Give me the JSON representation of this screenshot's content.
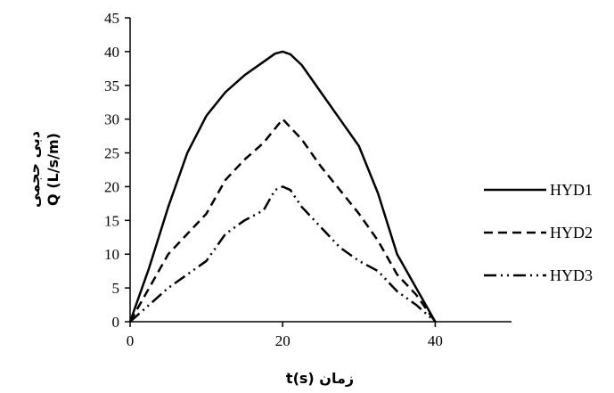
{
  "chart_data": {
    "type": "line",
    "xlabel": "t(s) زمان",
    "ylabel_lines": [
      "دبی حجمی",
      "Q (L/s/m)"
    ],
    "xlim": [
      0,
      50
    ],
    "ylim": [
      0,
      45
    ],
    "x_ticks": [
      0,
      20,
      40
    ],
    "y_ticks": [
      0,
      5,
      10,
      15,
      20,
      25,
      30,
      35,
      40,
      45
    ],
    "grid": false,
    "legend_position": "right",
    "series": [
      {
        "name": "HYD1",
        "style": "solid",
        "x": [
          0,
          2.5,
          5,
          7.5,
          10,
          12.5,
          15,
          17.5,
          19,
          20,
          21,
          22.5,
          25,
          27.5,
          30,
          32.5,
          35,
          37.5,
          40
        ],
        "y": [
          0,
          8,
          17,
          25,
          30.5,
          34,
          36.5,
          38.5,
          39.7,
          40,
          39.6,
          38,
          34,
          30,
          26,
          19,
          10,
          5,
          0
        ]
      },
      {
        "name": "HYD2",
        "style": "dashed",
        "x": [
          0,
          2.5,
          5,
          7.5,
          10,
          12.5,
          15,
          17.5,
          20,
          22.5,
          25,
          27.5,
          30,
          32.5,
          35,
          37.5,
          40
        ],
        "y": [
          0,
          5,
          10,
          13,
          16,
          21,
          24,
          26.5,
          30,
          27,
          23,
          19.5,
          16,
          12,
          7,
          4,
          0
        ]
      },
      {
        "name": "HYD3",
        "style": "dash-dot-dot",
        "x": [
          0,
          2.5,
          5,
          7.5,
          10,
          12.5,
          15,
          17.5,
          19,
          20,
          21,
          22.5,
          25,
          27.5,
          30,
          32.5,
          35,
          37.5,
          40
        ],
        "y": [
          0,
          2.5,
          5,
          7,
          9,
          13,
          15,
          16.5,
          19.5,
          20,
          19.5,
          17,
          14,
          11,
          9,
          7.5,
          4.5,
          2.5,
          0
        ]
      }
    ]
  }
}
